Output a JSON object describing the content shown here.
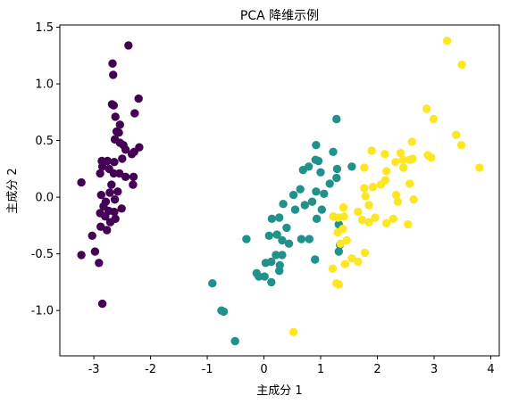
{
  "chart_data": {
    "type": "scatter",
    "title": "PCA 降维示例",
    "xlabel": "主成分 1",
    "ylabel": "主成分 2",
    "xlim": [
      -3.6,
      4.15
    ],
    "ylim": [
      -1.4,
      1.52
    ],
    "xticks": [
      -3,
      -2,
      -1,
      0,
      1,
      2,
      3,
      4
    ],
    "xtick_labels": [
      "-3",
      "-2",
      "-1",
      "0",
      "1",
      "2",
      "3",
      "4"
    ],
    "yticks": [
      -1.0,
      -0.5,
      0.0,
      0.5,
      1.0,
      1.5
    ],
    "ytick_labels": [
      "-1.0",
      "-0.5",
      "0.0",
      "0.5",
      "1.0",
      "1.5"
    ],
    "grid": false,
    "colors": [
      "#440154",
      "#21918c",
      "#fde725"
    ],
    "series": [
      {
        "points": [
          [
            -2.39,
            1.34
          ],
          [
            -2.67,
            1.18
          ],
          [
            -2.66,
            1.08
          ],
          [
            -2.21,
            0.87
          ],
          [
            -2.68,
            0.82
          ],
          [
            -2.65,
            0.81
          ],
          [
            -2.28,
            0.74
          ],
          [
            -2.62,
            0.71
          ],
          [
            -2.54,
            0.64
          ],
          [
            -2.6,
            0.58
          ],
          [
            -2.56,
            0.57
          ],
          [
            -2.63,
            0.51
          ],
          [
            -2.54,
            0.48
          ],
          [
            -2.48,
            0.46
          ],
          [
            -2.2,
            0.44
          ],
          [
            -2.29,
            0.4
          ],
          [
            -2.44,
            0.42
          ],
          [
            -2.33,
            0.38
          ],
          [
            -2.5,
            0.34
          ],
          [
            -2.86,
            0.32
          ],
          [
            -2.76,
            0.32
          ],
          [
            -2.64,
            0.31
          ],
          [
            -2.85,
            0.27
          ],
          [
            -2.73,
            0.25
          ],
          [
            -2.89,
            0.21
          ],
          [
            -2.65,
            0.21
          ],
          [
            -2.55,
            0.21
          ],
          [
            -2.44,
            0.18
          ],
          [
            -2.3,
            0.18
          ],
          [
            -2.31,
            0.11
          ],
          [
            -2.69,
            0.11
          ],
          [
            -3.22,
            0.13
          ],
          [
            -2.58,
            0.05
          ],
          [
            -2.72,
            0.04
          ],
          [
            -2.87,
            0.02
          ],
          [
            -2.63,
            -0.02
          ],
          [
            -2.79,
            -0.04
          ],
          [
            -2.83,
            -0.08
          ],
          [
            -2.51,
            -0.1
          ],
          [
            -2.74,
            -0.12
          ],
          [
            -2.64,
            -0.13
          ],
          [
            -2.89,
            -0.14
          ],
          [
            -2.8,
            -0.17
          ],
          [
            -2.62,
            -0.19
          ],
          [
            -2.71,
            -0.22
          ],
          [
            -2.88,
            -0.26
          ],
          [
            -2.77,
            -0.29
          ],
          [
            -3.03,
            -0.34
          ],
          [
            -3.22,
            -0.51
          ],
          [
            -2.98,
            -0.48
          ],
          [
            -2.91,
            -0.58
          ],
          [
            -2.85,
            -0.94
          ]
        ]
      },
      {
        "points": [
          [
            1.28,
            0.69
          ],
          [
            0.92,
            0.46
          ],
          [
            1.22,
            0.4
          ],
          [
            1.55,
            0.27
          ],
          [
            1.29,
            0.25
          ],
          [
            0.91,
            0.33
          ],
          [
            0.96,
            0.32
          ],
          [
            0.79,
            0.27
          ],
          [
            0.69,
            0.24
          ],
          [
            1.0,
            0.22
          ],
          [
            1.28,
            0.17
          ],
          [
            1.16,
            0.12
          ],
          [
            0.64,
            0.07
          ],
          [
            0.92,
            0.05
          ],
          [
            1.06,
            0.03
          ],
          [
            0.52,
            0.02
          ],
          [
            0.85,
            -0.04
          ],
          [
            0.34,
            -0.06
          ],
          [
            0.72,
            -0.07
          ],
          [
            0.55,
            -0.11
          ],
          [
            1.02,
            -0.11
          ],
          [
            0.93,
            -0.19
          ],
          [
            0.27,
            -0.18
          ],
          [
            0.14,
            -0.19
          ],
          [
            1.32,
            -0.24
          ],
          [
            0.4,
            -0.27
          ],
          [
            0.09,
            -0.34
          ],
          [
            0.23,
            -0.33
          ],
          [
            0.32,
            -0.38
          ],
          [
            0.8,
            -0.37
          ],
          [
            0.66,
            -0.37
          ],
          [
            0.44,
            -0.41
          ],
          [
            1.34,
            -0.42
          ],
          [
            1.32,
            -0.48
          ],
          [
            0.32,
            -0.51
          ],
          [
            0.21,
            -0.51
          ],
          [
            0.28,
            -0.6
          ],
          [
            0.9,
            -0.55
          ],
          [
            0.13,
            -0.57
          ],
          [
            0.03,
            -0.58
          ],
          [
            0.27,
            -0.65
          ],
          [
            0.01,
            -0.7
          ],
          [
            -0.09,
            -0.7
          ],
          [
            -0.13,
            -0.67
          ],
          [
            0.13,
            -0.75
          ],
          [
            -0.31,
            -0.37
          ],
          [
            -0.91,
            -0.76
          ],
          [
            -0.75,
            -1.0
          ],
          [
            -0.71,
            -1.01
          ],
          [
            -0.51,
            -1.27
          ]
        ]
      },
      {
        "points": [
          [
            3.23,
            1.38
          ],
          [
            3.49,
            1.17
          ],
          [
            2.87,
            0.78
          ],
          [
            2.99,
            0.69
          ],
          [
            2.61,
            0.49
          ],
          [
            3.39,
            0.55
          ],
          [
            3.48,
            0.46
          ],
          [
            1.9,
            0.41
          ],
          [
            2.13,
            0.38
          ],
          [
            2.41,
            0.39
          ],
          [
            2.32,
            0.31
          ],
          [
            2.45,
            0.33
          ],
          [
            2.57,
            0.33
          ],
          [
            2.62,
            0.34
          ],
          [
            2.89,
            0.37
          ],
          [
            2.95,
            0.35
          ],
          [
            1.77,
            0.26
          ],
          [
            2.16,
            0.23
          ],
          [
            2.46,
            0.26
          ],
          [
            3.8,
            0.26
          ],
          [
            2.14,
            0.15
          ],
          [
            2.06,
            0.11
          ],
          [
            1.92,
            0.09
          ],
          [
            1.77,
            0.08
          ],
          [
            2.33,
            0.02
          ],
          [
            2.57,
            0.12
          ],
          [
            2.36,
            -0.04
          ],
          [
            1.79,
            0.01
          ],
          [
            1.85,
            -0.07
          ],
          [
            2.64,
            -0.02
          ],
          [
            1.4,
            -0.09
          ],
          [
            1.41,
            -0.17
          ],
          [
            1.22,
            -0.17
          ],
          [
            1.31,
            -0.18
          ],
          [
            1.66,
            -0.13
          ],
          [
            1.73,
            -0.2
          ],
          [
            1.96,
            -0.18
          ],
          [
            1.85,
            -0.22
          ],
          [
            2.28,
            -0.19
          ],
          [
            2.16,
            -0.23
          ],
          [
            2.54,
            -0.24
          ],
          [
            1.39,
            -0.28
          ],
          [
            1.3,
            -0.31
          ],
          [
            1.46,
            -0.38
          ],
          [
            1.35,
            -0.41
          ],
          [
            1.78,
            -0.49
          ],
          [
            1.55,
            -0.54
          ],
          [
            1.66,
            -0.57
          ],
          [
            1.43,
            -0.59
          ],
          [
            1.21,
            -0.63
          ],
          [
            1.28,
            -0.76
          ],
          [
            1.32,
            -0.77
          ],
          [
            0.52,
            -1.19
          ]
        ]
      }
    ]
  }
}
